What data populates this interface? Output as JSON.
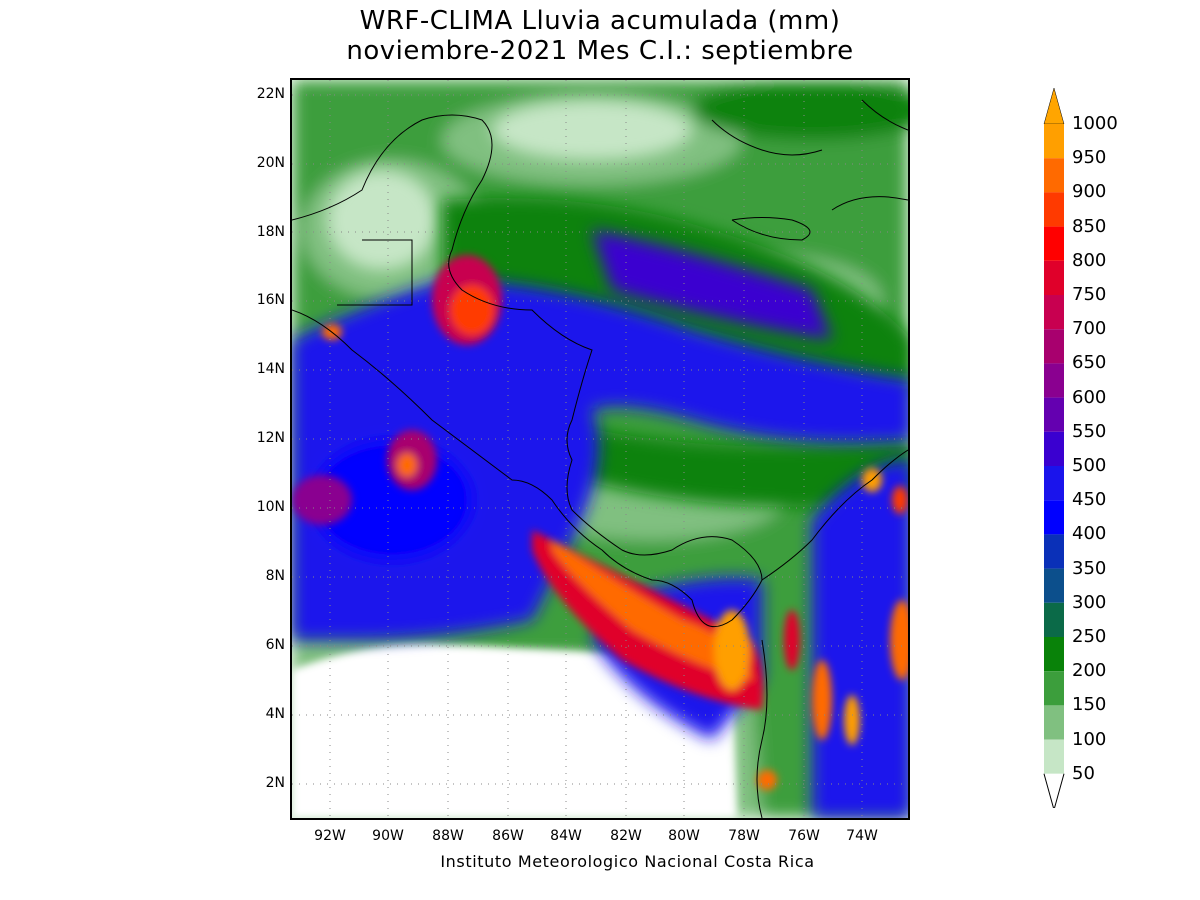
{
  "title": {
    "line1": "WRF-CLIMA Lluvia acumulada (mm)",
    "line2": "noviembre-2021 Mes C.I.: septiembre"
  },
  "credit": "Instituto Meteorologico Nacional Costa Rica",
  "map": {
    "lat_labels": [
      "22N",
      "20N",
      "18N",
      "16N",
      "14N",
      "12N",
      "10N",
      "8N",
      "6N",
      "4N",
      "2N"
    ],
    "lon_labels": [
      "92W",
      "90W",
      "88W",
      "86W",
      "84W",
      "82W",
      "80W",
      "78W",
      "76W",
      "74W"
    ],
    "lon_range": [
      -93.3,
      -72.3
    ],
    "lat_range": [
      1.0,
      22.4
    ]
  },
  "colorbar": {
    "levels": [
      "1000",
      "950",
      "900",
      "850",
      "800",
      "750",
      "700",
      "650",
      "600",
      "550",
      "500",
      "450",
      "400",
      "350",
      "300",
      "250",
      "200",
      "150",
      "100",
      "50"
    ],
    "colors": [
      "#ff9f00",
      "#ff6a00",
      "#ff3a00",
      "#ff0000",
      "#e0002a",
      "#c80050",
      "#a8006e",
      "#8a0090",
      "#6400b0",
      "#3a00d0",
      "#1a14ec",
      "#0000ff",
      "#0a30b8",
      "#0c4f8c",
      "#0b6a48",
      "#098209",
      "#3c9e3c",
      "#80c080",
      "#c6e6c6"
    ],
    "overflow_arrow_color": "#ffa500"
  }
}
